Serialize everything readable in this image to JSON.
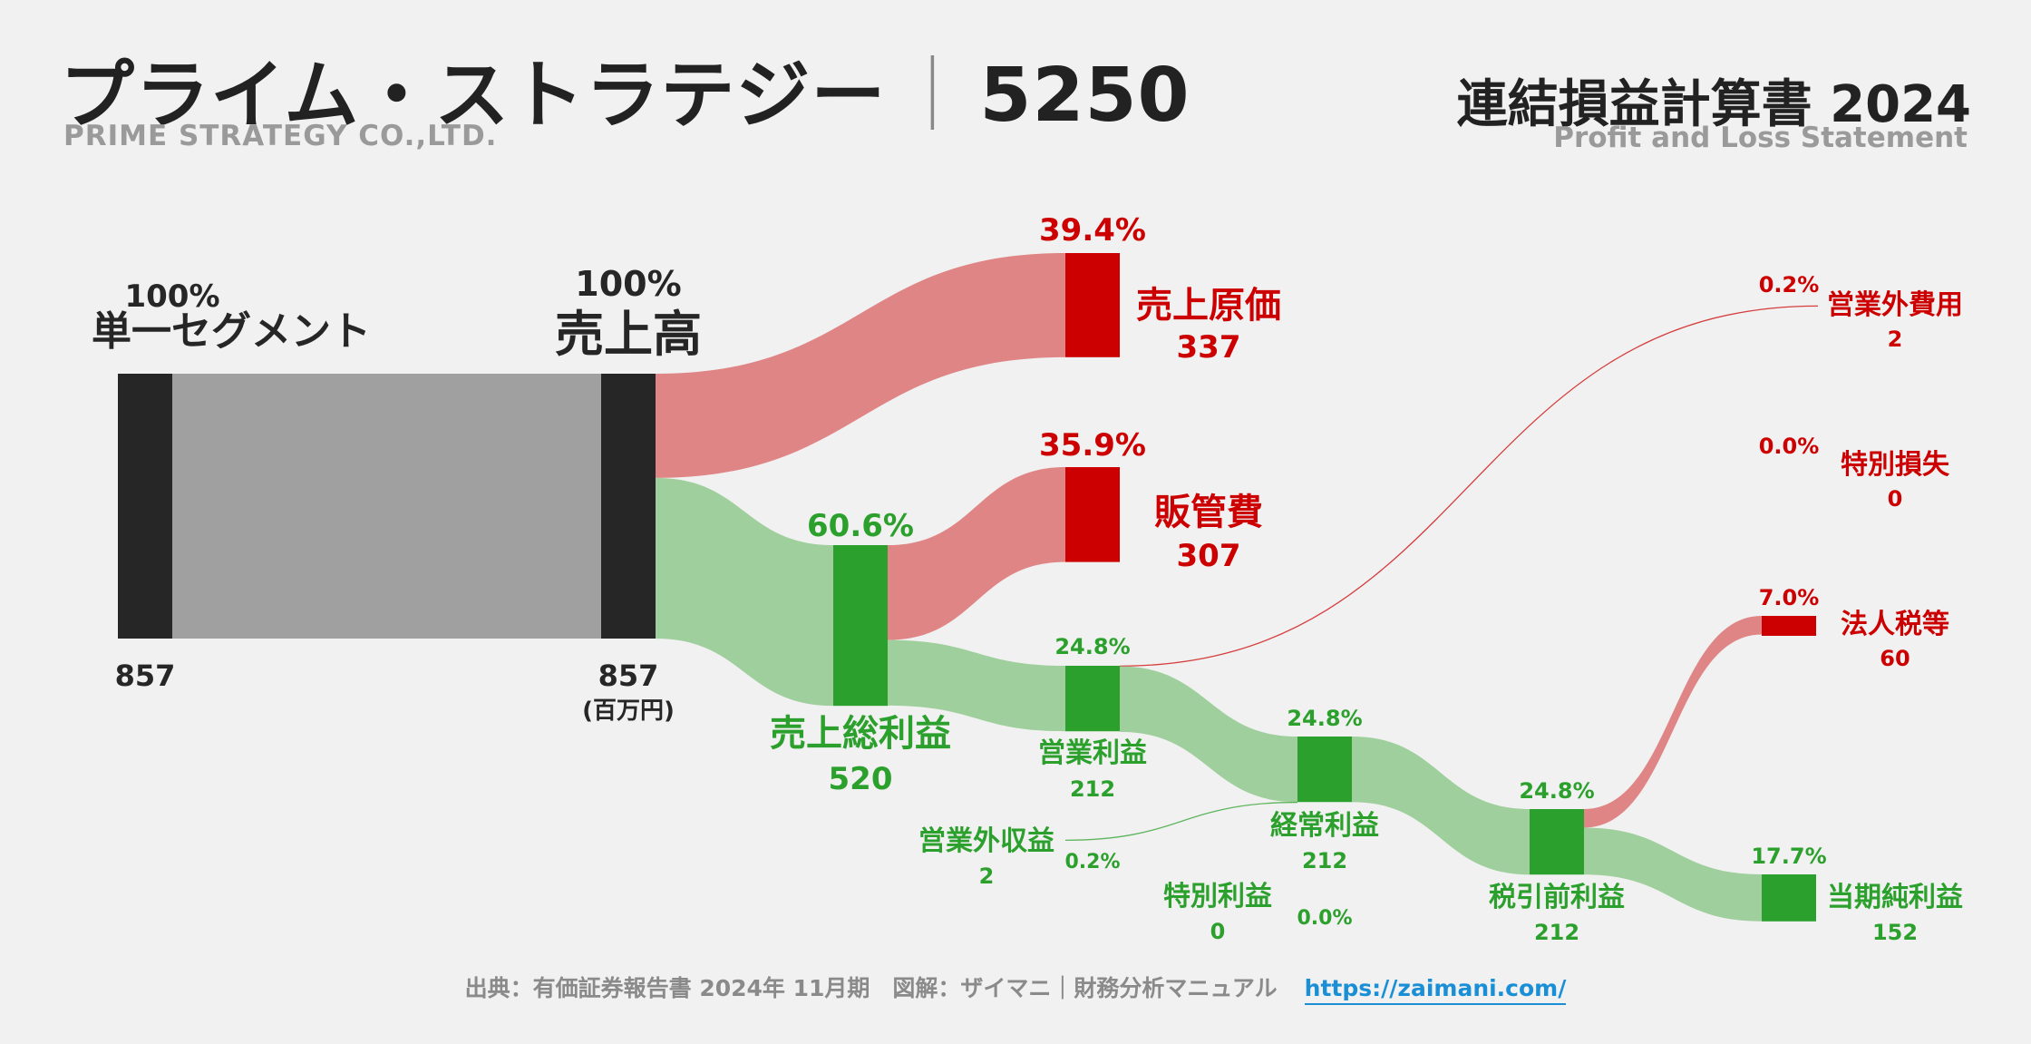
{
  "header": {
    "company_name": "プライム・ストラテジー",
    "separator": "｜",
    "ticker": "5250",
    "company_name_en": "PRIME STRATEGY CO.,LTD.",
    "statement_title": "連結損益計算書 2024",
    "statement_title_en": "Profit and Loss Statement"
  },
  "footer": {
    "source": "出典：有価証券報告書 2024年 11月期　図解：ザイマニ｜財務分析マニュアル",
    "url": "https://zaimani.com/"
  },
  "colors": {
    "dark": "#262626",
    "gray_flow": "#a0a0a0",
    "profit": "#2ca02c",
    "profit_flow": "#9fcf9c",
    "cost": "#cc0000",
    "cost_flow": "#e08585"
  },
  "chart_data": {
    "type": "sankey",
    "unit": "(百万円)",
    "nodes": [
      {
        "id": "segment",
        "name": "単一セグメント",
        "value": 857,
        "pct": "100%",
        "kind": "dark"
      },
      {
        "id": "revenue",
        "name": "売上高",
        "value": 857,
        "pct": "100%",
        "kind": "dark"
      },
      {
        "id": "cogs",
        "name": "売上原価",
        "value": 337,
        "pct": "39.4%",
        "kind": "cost"
      },
      {
        "id": "gross",
        "name": "売上総利益",
        "value": 520,
        "pct": "60.6%",
        "kind": "profit"
      },
      {
        "id": "sga",
        "name": "販管費",
        "value": 307,
        "pct": "35.9%",
        "kind": "cost"
      },
      {
        "id": "op",
        "name": "営業利益",
        "value": 212,
        "pct": "24.8%",
        "kind": "profit"
      },
      {
        "id": "nonop_exp",
        "name": "営業外費用",
        "value": 2,
        "pct": "0.2%",
        "kind": "cost"
      },
      {
        "id": "nonop_inc",
        "name": "営業外収益",
        "value": 2,
        "pct": "0.2%",
        "kind": "profit"
      },
      {
        "id": "ordinary",
        "name": "経常利益",
        "value": 212,
        "pct": "24.8%",
        "kind": "profit"
      },
      {
        "id": "sp_loss",
        "name": "特別損失",
        "value": 0,
        "pct": "0.0%",
        "kind": "cost"
      },
      {
        "id": "sp_gain",
        "name": "特別利益",
        "value": 0,
        "pct": "0.0%",
        "kind": "profit"
      },
      {
        "id": "pretax",
        "name": "税引前利益",
        "value": 212,
        "pct": "24.8%",
        "kind": "profit"
      },
      {
        "id": "tax",
        "name": "法人税等",
        "value": 60,
        "pct": "7.0%",
        "kind": "cost"
      },
      {
        "id": "net",
        "name": "当期純利益",
        "value": 152,
        "pct": "17.7%",
        "kind": "profit"
      }
    ],
    "links": [
      {
        "source": "segment",
        "target": "revenue",
        "value": 857
      },
      {
        "source": "revenue",
        "target": "cogs",
        "value": 337
      },
      {
        "source": "revenue",
        "target": "gross",
        "value": 520
      },
      {
        "source": "gross",
        "target": "sga",
        "value": 307
      },
      {
        "source": "gross",
        "target": "op",
        "value": 212
      },
      {
        "source": "op",
        "target": "nonop_exp",
        "value": 2
      },
      {
        "source": "op",
        "target": "ordinary",
        "value": 212
      },
      {
        "source": "nonop_inc",
        "target": "ordinary",
        "value": 2
      },
      {
        "source": "ordinary",
        "target": "pretax",
        "value": 212
      },
      {
        "source": "pretax",
        "target": "tax",
        "value": 60
      },
      {
        "source": "pretax",
        "target": "net",
        "value": 152
      }
    ]
  }
}
